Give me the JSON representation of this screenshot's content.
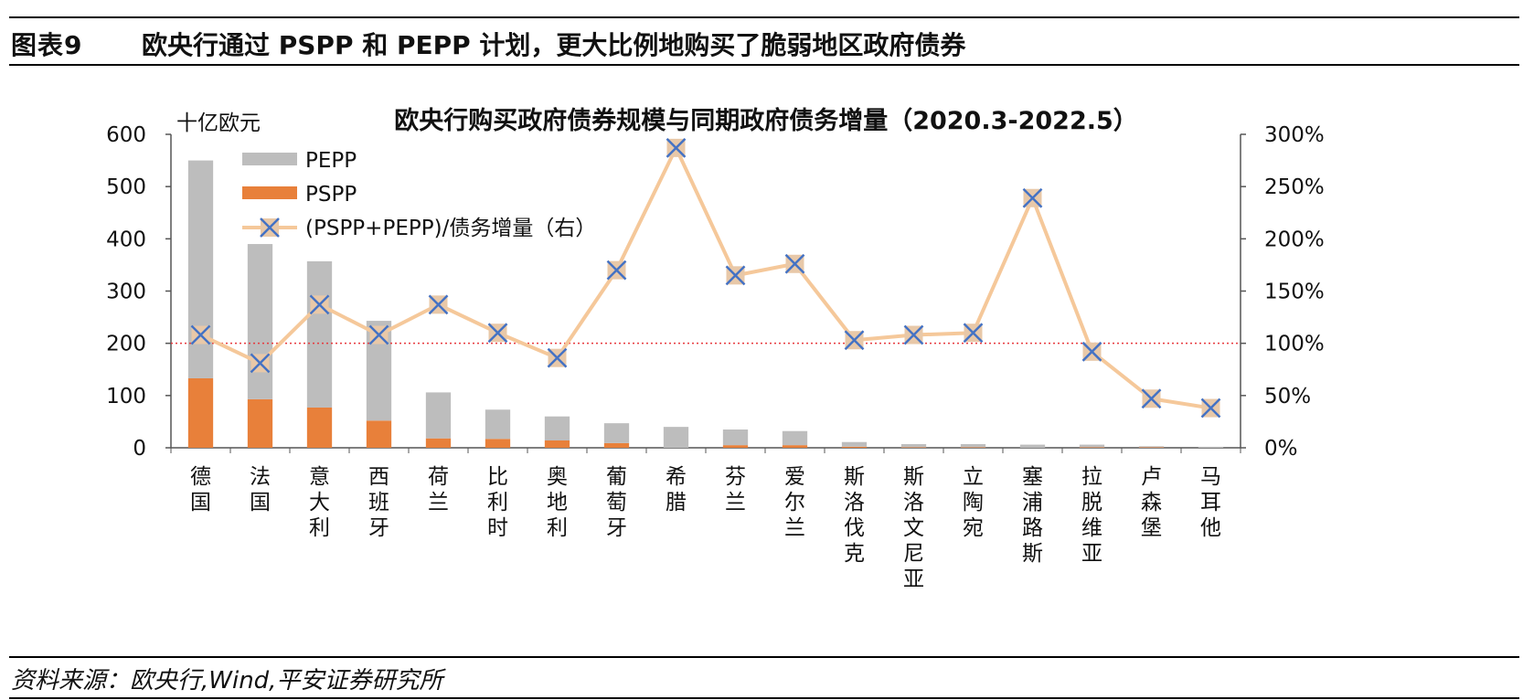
{
  "header": {
    "figure_label": "图表9",
    "figure_title": "欧央行通过 PSPP 和 PEPP 计划，更大比例地购买了脆弱地区政府债券"
  },
  "footer": {
    "source": "资料来源：欧央行,Wind,平安证券研究所"
  },
  "colors": {
    "pepp": "#bdbdbd",
    "pspp": "#e8803a",
    "ratio_line": "#f5c89a",
    "marker_fill": "#e8c8a8",
    "marker_cross": "#4472c4",
    "reference_line": "#e8383d"
  },
  "chart_data": {
    "type": "bar",
    "title": "欧央行购买政府债券规模与同期政府债务增量（2020.3-2022.5）",
    "ylabel": "十亿欧元",
    "ylim": [
      0,
      600
    ],
    "yticks": [
      "0",
      "100",
      "200",
      "300",
      "400",
      "500",
      "600"
    ],
    "y2lim": [
      0,
      3.0
    ],
    "y2ticks": [
      "0%",
      "50%",
      "100%",
      "150%",
      "200%",
      "250%",
      "300%"
    ],
    "reference_line_right": 1.0,
    "categories": [
      "德国",
      "法国",
      "意大利",
      "西班牙",
      "荷兰",
      "比利时",
      "奥地利",
      "葡萄牙",
      "希腊",
      "芬兰",
      "爱尔兰",
      "斯洛伐克",
      "斯洛文尼亚",
      "立陶宛",
      "塞浦路斯",
      "拉脱维亚",
      "卢森堡",
      "马耳他"
    ],
    "series": [
      {
        "name": "PSPP",
        "axis": "left",
        "stack": true,
        "values": [
          133,
          93,
          77,
          52,
          18,
          17,
          14,
          9,
          0,
          5,
          5,
          2,
          1,
          1,
          0,
          1,
          1,
          0
        ]
      },
      {
        "name": "PEPP",
        "axis": "left",
        "stack": true,
        "values": [
          417,
          297,
          280,
          191,
          88,
          56,
          46,
          38,
          40,
          30,
          27,
          9,
          6,
          6,
          6,
          5,
          2,
          2
        ]
      },
      {
        "name": "(PSPP+PEPP)/债务增量（右）",
        "axis": "right",
        "type": "line",
        "values": [
          1.08,
          0.81,
          1.37,
          1.08,
          1.37,
          1.1,
          0.86,
          1.7,
          2.87,
          1.65,
          1.76,
          1.03,
          1.08,
          1.1,
          2.39,
          0.92,
          0.47,
          0.38
        ]
      }
    ],
    "legend": [
      "PEPP",
      "PSPP",
      "(PSPP+PEPP)/债务增量（右）"
    ]
  }
}
